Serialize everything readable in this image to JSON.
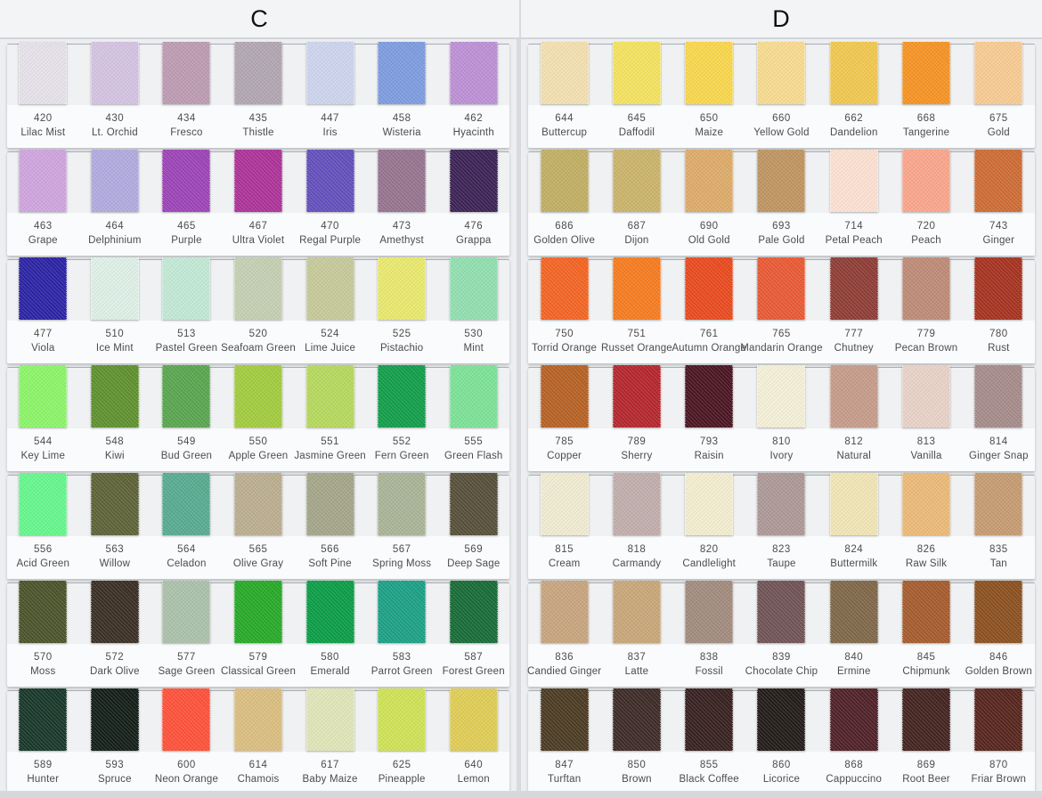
{
  "panels": [
    {
      "label": "C",
      "rows": [
        [
          {
            "code": "420",
            "name": "Lilac Mist",
            "color": "#e7e2ea"
          },
          {
            "code": "430",
            "name": "Lt. Orchid",
            "color": "#d4c3e2"
          },
          {
            "code": "434",
            "name": "Fresco",
            "color": "#bd9cb3"
          },
          {
            "code": "435",
            "name": "Thistle",
            "color": "#b2a6b2"
          },
          {
            "code": "447",
            "name": "Iris",
            "color": "#cdd5ee"
          },
          {
            "code": "458",
            "name": "Wisteria",
            "color": "#7e9cdf"
          },
          {
            "code": "462",
            "name": "Hyacinth",
            "color": "#bd90d6"
          }
        ],
        [
          {
            "code": "463",
            "name": "Grape",
            "color": "#cfa5de"
          },
          {
            "code": "464",
            "name": "Delphinium",
            "color": "#b1abdf"
          },
          {
            "code": "465",
            "name": "Purple",
            "color": "#9d44b8"
          },
          {
            "code": "467",
            "name": "Ultra Violet",
            "color": "#ad3399"
          },
          {
            "code": "470",
            "name": "Regal Purple",
            "color": "#6450bc"
          },
          {
            "code": "473",
            "name": "Amethyst",
            "color": "#97748f"
          },
          {
            "code": "476",
            "name": "Grappa",
            "color": "#3d2356"
          }
        ],
        [
          {
            "code": "477",
            "name": "Viola",
            "color": "#2c24a4"
          },
          {
            "code": "510",
            "name": "Ice Mint",
            "color": "#def0e7"
          },
          {
            "code": "513",
            "name": "Pastel Green",
            "color": "#c2e9d6"
          },
          {
            "code": "520",
            "name": "Seafoam Green",
            "color": "#c5cfb2"
          },
          {
            "code": "524",
            "name": "Lime Juice",
            "color": "#c6ca9a"
          },
          {
            "code": "525",
            "name": "Pistachio",
            "color": "#e9e96f"
          },
          {
            "code": "530",
            "name": "Mint",
            "color": "#92dfb0"
          }
        ],
        [
          {
            "code": "544",
            "name": "Key Lime",
            "color": "#8cf569"
          },
          {
            "code": "548",
            "name": "Kiwi",
            "color": "#5f912f"
          },
          {
            "code": "549",
            "name": "Bud Green",
            "color": "#5aa650"
          },
          {
            "code": "550",
            "name": "Apple Green",
            "color": "#a3cc3f"
          },
          {
            "code": "551",
            "name": "Jasmine Green",
            "color": "#b6d95d"
          },
          {
            "code": "552",
            "name": "Fern Green",
            "color": "#139e4b"
          },
          {
            "code": "555",
            "name": "Green Flash",
            "color": "#7de297"
          }
        ],
        [
          {
            "code": "556",
            "name": "Acid Green",
            "color": "#66f78d"
          },
          {
            "code": "563",
            "name": "Willow",
            "color": "#5e6338"
          },
          {
            "code": "564",
            "name": "Celadon",
            "color": "#58ab90"
          },
          {
            "code": "565",
            "name": "Olive Gray",
            "color": "#bbae90"
          },
          {
            "code": "566",
            "name": "Soft Pine",
            "color": "#a5a68a"
          },
          {
            "code": "567",
            "name": "Spring Moss",
            "color": "#aab497"
          },
          {
            "code": "569",
            "name": "Deep Sage",
            "color": "#57503a"
          }
        ],
        [
          {
            "code": "570",
            "name": "Moss",
            "color": "#4c542b"
          },
          {
            "code": "572",
            "name": "Dark Olive",
            "color": "#3b3025"
          },
          {
            "code": "577",
            "name": "Sage Green",
            "color": "#abc1aa"
          },
          {
            "code": "579",
            "name": "Classical Green",
            "color": "#28aa28"
          },
          {
            "code": "580",
            "name": "Emerald",
            "color": "#0c9e47"
          },
          {
            "code": "583",
            "name": "Parrot Green",
            "color": "#1ca186"
          },
          {
            "code": "587",
            "name": "Forest Green",
            "color": "#186c37"
          }
        ],
        [
          {
            "code": "589",
            "name": "Hunter",
            "color": "#19382b"
          },
          {
            "code": "593",
            "name": "Spruce",
            "color": "#141f19"
          },
          {
            "code": "600",
            "name": "Neon Orange",
            "color": "#fe523a"
          },
          {
            "code": "614",
            "name": "Chamois",
            "color": "#dbbe80"
          },
          {
            "code": "617",
            "name": "Baby Maize",
            "color": "#e0e5b8"
          },
          {
            "code": "625",
            "name": "Pineapple",
            "color": "#cfe256"
          },
          {
            "code": "640",
            "name": "Lemon",
            "color": "#dfcd56"
          }
        ]
      ]
    },
    {
      "label": "D",
      "rows": [
        [
          {
            "code": "644",
            "name": "Buttercup",
            "color": "#f3e0b0"
          },
          {
            "code": "645",
            "name": "Daffodil",
            "color": "#f4e260"
          },
          {
            "code": "650",
            "name": "Maize",
            "color": "#f9d74d"
          },
          {
            "code": "660",
            "name": "Yellow Gold",
            "color": "#f8db90"
          },
          {
            "code": "662",
            "name": "Dandelion",
            "color": "#f1c850"
          },
          {
            "code": "668",
            "name": "Tangerine",
            "color": "#f69424"
          },
          {
            "code": "675",
            "name": "Gold",
            "color": "#f8cb92"
          }
        ],
        [
          {
            "code": "686",
            "name": "Golden Olive",
            "color": "#c1af64"
          },
          {
            "code": "687",
            "name": "Dijon",
            "color": "#cbb46b"
          },
          {
            "code": "690",
            "name": "Old Gold",
            "color": "#deab6a"
          },
          {
            "code": "693",
            "name": "Pale Gold",
            "color": "#bf9562"
          },
          {
            "code": "714",
            "name": "Petal Peach",
            "color": "#fce1d2"
          },
          {
            "code": "720",
            "name": "Peach",
            "color": "#faa68b"
          },
          {
            "code": "743",
            "name": "Ginger",
            "color": "#ce6c35"
          }
        ],
        [
          {
            "code": "750",
            "name": "Torrid Orange",
            "color": "#f36524"
          },
          {
            "code": "751",
            "name": "Russet Orange",
            "color": "#f67c20"
          },
          {
            "code": "761",
            "name": "Autumn Orange",
            "color": "#e94b1f"
          },
          {
            "code": "765",
            "name": "Mandarin Orange",
            "color": "#e95a35"
          },
          {
            "code": "777",
            "name": "Chutney",
            "color": "#8e3e36"
          },
          {
            "code": "779",
            "name": "Pecan Brown",
            "color": "#be8b77"
          },
          {
            "code": "780",
            "name": "Rust",
            "color": "#a73321"
          }
        ],
        [
          {
            "code": "785",
            "name": "Copper",
            "color": "#b76225"
          },
          {
            "code": "789",
            "name": "Sherry",
            "color": "#b5272d"
          },
          {
            "code": "793",
            "name": "Raisin",
            "color": "#4b1623"
          },
          {
            "code": "810",
            "name": "Ivory",
            "color": "#f4f0d7"
          },
          {
            "code": "812",
            "name": "Natural",
            "color": "#c69c8a"
          },
          {
            "code": "813",
            "name": "Vanilla",
            "color": "#e9d2c8"
          },
          {
            "code": "814",
            "name": "Ginger Snap",
            "color": "#a68c8b"
          }
        ],
        [
          {
            "code": "815",
            "name": "Cream",
            "color": "#f1ebd2"
          },
          {
            "code": "818",
            "name": "Carmandy",
            "color": "#c1aeac"
          },
          {
            "code": "820",
            "name": "Candlelight",
            "color": "#f3edd0"
          },
          {
            "code": "823",
            "name": "Taupe",
            "color": "#ad9997"
          },
          {
            "code": "824",
            "name": "Buttermilk",
            "color": "#f1e5b6"
          },
          {
            "code": "826",
            "name": "Raw Silk",
            "color": "#ebba78"
          },
          {
            "code": "835",
            "name": "Tan",
            "color": "#c69c72"
          }
        ],
        [
          {
            "code": "836",
            "name": "Candied Ginger",
            "color": "#c8a57f"
          },
          {
            "code": "837",
            "name": "Latte",
            "color": "#c9a779"
          },
          {
            "code": "838",
            "name": "Fossil",
            "color": "#a28c7e"
          },
          {
            "code": "839",
            "name": "Chocolate Chip",
            "color": "#715456"
          },
          {
            "code": "840",
            "name": "Ermine",
            "color": "#806849"
          },
          {
            "code": "845",
            "name": "Chipmunk",
            "color": "#a65c2e"
          },
          {
            "code": "846",
            "name": "Golden Brown",
            "color": "#8c5120"
          }
        ],
        [
          {
            "code": "847",
            "name": "Turftan",
            "color": "#4c3c24"
          },
          {
            "code": "850",
            "name": "Brown",
            "color": "#3e2c28"
          },
          {
            "code": "855",
            "name": "Black Coffee",
            "color": "#372220"
          },
          {
            "code": "860",
            "name": "Licorice",
            "color": "#231d1a"
          },
          {
            "code": "868",
            "name": "Cappuccino",
            "color": "#502228"
          },
          {
            "code": "869",
            "name": "Root Beer",
            "color": "#442420"
          },
          {
            "code": "870",
            "name": "Friar Brown",
            "color": "#57261e"
          }
        ]
      ]
    }
  ]
}
